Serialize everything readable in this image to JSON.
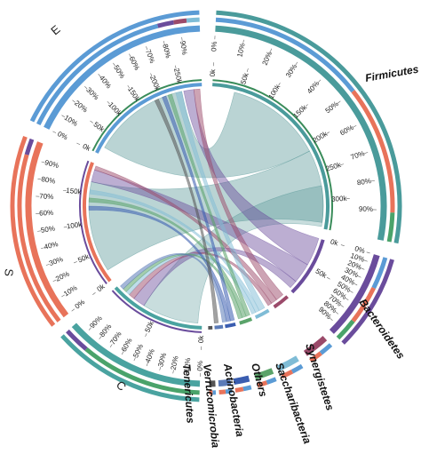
{
  "diagram": {
    "type": "chord",
    "groups": [
      {
        "id": "E",
        "label": "E",
        "color": "#5b9bd5"
      },
      {
        "id": "S",
        "label": "S",
        "color": "#e8735a"
      },
      {
        "id": "C",
        "label": "C",
        "color": "#4aa3a0"
      }
    ],
    "taxa": [
      {
        "id": "firmicutes",
        "label": "Firmicutes",
        "color": "#4a9b9b"
      },
      {
        "id": "bacteroidetes",
        "label": "Bacteroidetes",
        "color": "#6a4c9c"
      },
      {
        "id": "synergistetes",
        "label": "Synergistetes",
        "color": "#9b4a6a"
      },
      {
        "id": "saccharibacteria",
        "label": "Saccharibacteria",
        "color": "#7fbcd6"
      },
      {
        "id": "others",
        "label": "Others",
        "color": "#5aa36a"
      },
      {
        "id": "actinobacteria",
        "label": "Actinobacteria",
        "color": "#3a5db0"
      },
      {
        "id": "verrucomicrobia",
        "label": "Verrucomicrobia",
        "color": "#5b7bb8"
      },
      {
        "id": "tenericutes",
        "label": "Tenericutes",
        "color": "#555555"
      }
    ],
    "ticks": {
      "e_pct": [
        "0%",
        "10%",
        "20%",
        "30%",
        "40%",
        "50%",
        "60%",
        "70%",
        "80%",
        "90%"
      ],
      "e_k": [
        "0k",
        "50k",
        "100k",
        "150k",
        "200k",
        "250k"
      ],
      "firm_pct": [
        "0%",
        "10%",
        "20%",
        "30%",
        "40%",
        "50%",
        "60%",
        "70%",
        "80%",
        "90%"
      ],
      "firm_k": [
        "0k",
        "50k",
        "100k",
        "150k",
        "200k",
        "250k",
        "300k"
      ],
      "bact_pct": [
        "0%",
        "10%",
        "20%",
        "30%",
        "40%",
        "50%",
        "60%",
        "70%",
        "80%",
        "90%"
      ],
      "bact_k": [
        "0k",
        "50k"
      ],
      "s_pct": [
        "0%",
        "10%",
        "20%",
        "30%",
        "40%",
        "50%",
        "60%",
        "70%",
        "80%",
        "90%"
      ],
      "s_k": [
        "0k",
        "50k",
        "100k",
        "150k"
      ],
      "c_pct": [
        "0%",
        "10%",
        "20%",
        "30%",
        "40%",
        "50%",
        "60%",
        "70%",
        "80%",
        "90%"
      ],
      "c_k": [
        "0k",
        "50k"
      ]
    }
  }
}
